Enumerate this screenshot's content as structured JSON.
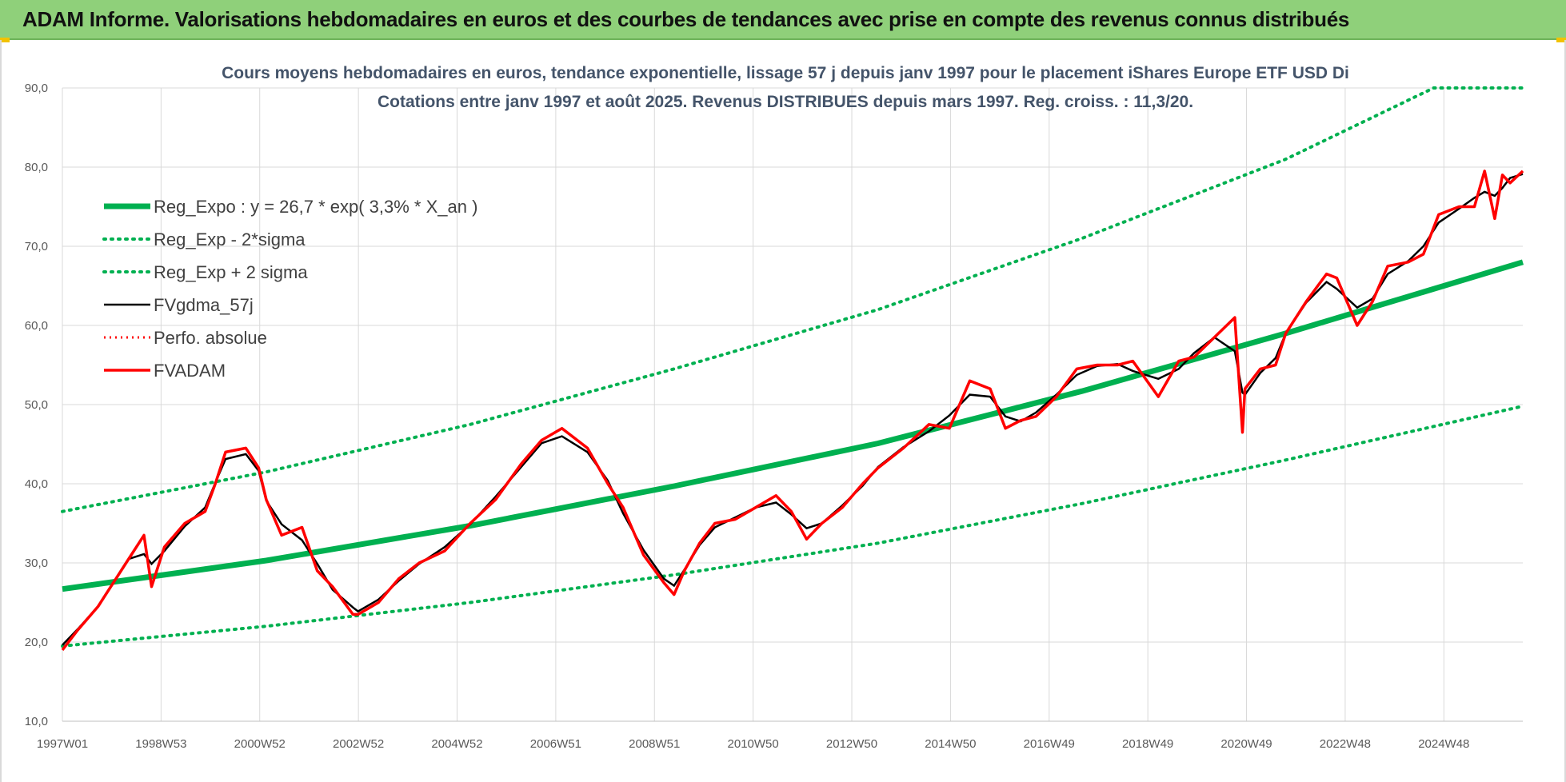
{
  "header": {
    "title": "ADAM Informe. Valorisations hebdomadaires en euros et des courbes de tendances avec prise en compte des revenus connus distribués"
  },
  "chart_data": {
    "type": "line",
    "title_lines": [
      "Cours moyens hebdomadaires en euros, tendance exponentielle, lissage 57 j depuis janv 1997  pour le placement iShares Europe ETF USD Di",
      "Cotations entre janv 1997 et août 2025.  Revenus DISTRIBUES depuis mars 1997. Reg. croiss. : 11,3/20."
    ],
    "x_tick_labels": [
      "1997W01",
      "1998W53",
      "2000W52",
      "2002W52",
      "2004W52",
      "2006W51",
      "2008W51",
      "2010W50",
      "2012W50",
      "2014W50",
      "2016W49",
      "2018W49",
      "2020W49",
      "2022W48",
      "2024W48"
    ],
    "xlim": [
      1997.0,
      2025.65
    ],
    "ylim": [
      10,
      90
    ],
    "y_ticks": [
      10,
      20,
      30,
      40,
      50,
      60,
      70,
      80,
      90
    ],
    "y_tick_labels": [
      "10,0",
      "20,0",
      "30,0",
      "40,0",
      "50,0",
      "60,0",
      "70,0",
      "80,0",
      "90,0"
    ],
    "grid": true,
    "legend_position": "top-left",
    "colors": {
      "trend": "#00b050",
      "smooth": "#000000",
      "price": "#ff0000",
      "banner": "#8fd07a"
    },
    "series": [
      {
        "name": "Reg_Expo : y = 26,7 * exp( 3,3% *  X_an )",
        "style": "solid-green-thick",
        "x": [
          1997.0,
          2001.0,
          2005.0,
          2009.0,
          2013.0,
          2017.0,
          2021.0,
          2025.65
        ],
        "y": [
          26.7,
          30.3,
          34.7,
          39.7,
          45.1,
          51.7,
          59.0,
          68.0
        ]
      },
      {
        "name": "Reg_Exp - 2*sigma",
        "style": "dotted-green",
        "x": [
          1997.0,
          2001.0,
          2005.0,
          2009.0,
          2013.0,
          2017.0,
          2021.0,
          2025.65
        ],
        "y": [
          19.5,
          22.0,
          25.0,
          28.5,
          32.5,
          37.5,
          43.0,
          49.8
        ]
      },
      {
        "name": "Reg_Exp + 2 sigma",
        "style": "dotted-green",
        "x": [
          1997.0,
          2001.0,
          2005.0,
          2009.0,
          2013.0,
          2017.0,
          2021.0,
          2023.9,
          2025.65
        ],
        "y": [
          36.5,
          41.5,
          47.5,
          54.5,
          62.0,
          71.0,
          81.0,
          90.0,
          90.0
        ]
      },
      {
        "name": "FVgdma_57j",
        "style": "solid-black",
        "x": [],
        "y": []
      },
      {
        "name": "Perfo. absolue",
        "style": "dotted-red",
        "x": [],
        "y": []
      },
      {
        "name": "FVADAM",
        "style": "solid-red",
        "x": [
          1997.0,
          1997.3,
          1997.7,
          1998.0,
          1998.3,
          1998.6,
          1998.75,
          1999.0,
          1999.4,
          1999.8,
          2000.0,
          2000.2,
          2000.6,
          2000.85,
          2001.0,
          2001.3,
          2001.7,
          2002.0,
          2002.3,
          2002.7,
          2002.8,
          2003.2,
          2003.6,
          2004.0,
          2004.5,
          2005.0,
          2005.5,
          2006.0,
          2006.4,
          2006.8,
          2007.3,
          2007.7,
          2008.0,
          2008.4,
          2008.8,
          2009.0,
          2009.2,
          2009.5,
          2009.8,
          2010.2,
          2010.6,
          2011.0,
          2011.3,
          2011.6,
          2011.9,
          2012.3,
          2012.7,
          2013.0,
          2013.5,
          2014.0,
          2014.4,
          2014.8,
          2015.2,
          2015.5,
          2015.8,
          2016.1,
          2016.5,
          2016.9,
          2017.3,
          2017.7,
          2018.0,
          2018.5,
          2018.9,
          2019.2,
          2019.6,
          2020.0,
          2020.15,
          2020.2,
          2020.5,
          2020.8,
          2021.0,
          2021.4,
          2021.8,
          2022.0,
          2022.4,
          2022.7,
          2023.0,
          2023.4,
          2023.7,
          2024.0,
          2024.4,
          2024.7,
          2024.9,
          2025.1,
          2025.25,
          2025.4,
          2025.65
        ],
        "y": [
          19.0,
          21.5,
          24.5,
          27.5,
          30.5,
          33.5,
          27.0,
          32.0,
          35.0,
          36.5,
          40.0,
          44.0,
          44.5,
          42.0,
          38.0,
          33.5,
          34.5,
          29.0,
          27.0,
          23.5,
          23.5,
          25.0,
          28.0,
          30.0,
          31.5,
          35.0,
          38.0,
          42.5,
          45.5,
          47.0,
          44.5,
          40.0,
          37.0,
          31.0,
          27.5,
          26.0,
          29.0,
          32.5,
          35.0,
          35.5,
          37.0,
          38.5,
          36.5,
          33.0,
          35.0,
          37.0,
          40.0,
          42.0,
          44.5,
          47.5,
          47.0,
          53.0,
          52.0,
          47.0,
          48.0,
          48.5,
          51.0,
          54.5,
          55.0,
          55.0,
          55.5,
          51.0,
          55.5,
          56.0,
          58.5,
          61.0,
          46.5,
          52.0,
          54.5,
          55.0,
          59.0,
          63.0,
          66.5,
          66.0,
          60.0,
          63.0,
          67.5,
          68.0,
          69.0,
          74.0,
          75.0,
          75.0,
          79.5,
          73.5,
          79.0,
          78.0,
          79.5
        ]
      }
    ]
  }
}
